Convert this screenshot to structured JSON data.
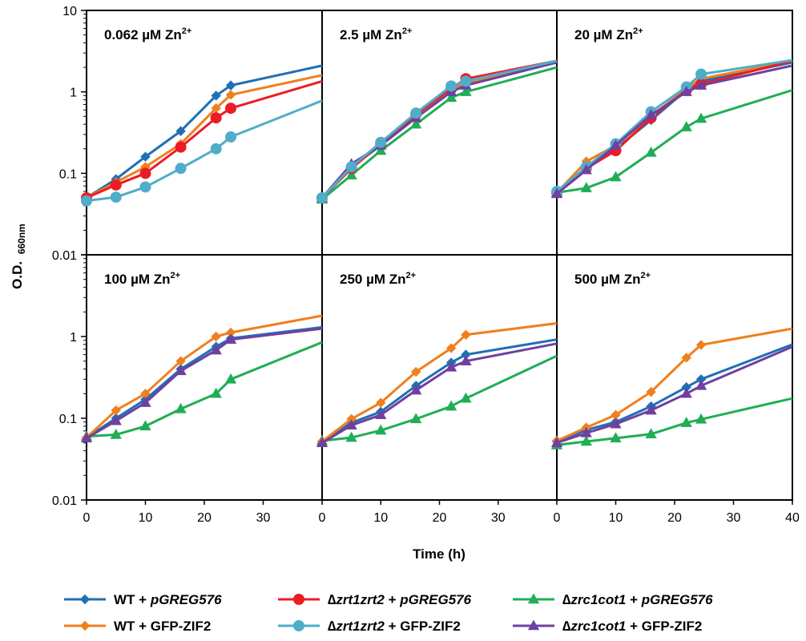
{
  "figure": {
    "ylabel_main": "O.D.",
    "ylabel_sub": "660nm",
    "xlabel": "Time (h)",
    "y_ticks": [
      "10",
      "1",
      "0.1",
      "0.01"
    ],
    "y_ticks_bottom": [
      "1",
      "0.1",
      "0.01"
    ],
    "x_ticks_first": [
      "0",
      "10",
      "20",
      "30"
    ],
    "x_ticks_last": [
      "0",
      "10",
      "20",
      "30",
      "40"
    ]
  },
  "legend": {
    "placement": "bottom",
    "items": [
      {
        "series": "wt_pgreg",
        "parts": [
          {
            "t": "WT + ",
            "i": false
          },
          {
            "t": "pGREG576",
            "i": true
          }
        ]
      },
      {
        "series": "zrt_pgreg",
        "parts": [
          {
            "t": "∆",
            "i": false
          },
          {
            "t": "zrt1zrt2",
            "i": true
          },
          {
            "t": " + ",
            "i": false
          },
          {
            "t": "pGREG576",
            "i": true
          }
        ]
      },
      {
        "series": "zrc_pgreg",
        "parts": [
          {
            "t": "∆",
            "i": false
          },
          {
            "t": "zrc1cot1",
            "i": true
          },
          {
            "t": " + ",
            "i": false
          },
          {
            "t": "pGREG576",
            "i": true
          }
        ]
      },
      {
        "series": "wt_gfp",
        "parts": [
          {
            "t": "WT + GFP-ZIF2",
            "i": false
          }
        ]
      },
      {
        "series": "zrt_gfp",
        "parts": [
          {
            "t": "∆",
            "i": false
          },
          {
            "t": "zrt1zrt2",
            "i": true
          },
          {
            "t": " + GFP-ZIF2",
            "i": false
          }
        ]
      },
      {
        "series": "zrc_gfp",
        "parts": [
          {
            "t": "∆",
            "i": false
          },
          {
            "t": "zrc1cot1",
            "i": true
          },
          {
            "t": " + GFP-ZIF2",
            "i": false
          }
        ]
      }
    ]
  },
  "series_styles": {
    "wt_pgreg": {
      "color": "#1f6fb5",
      "marker": "diamond"
    },
    "wt_gfp": {
      "color": "#f07f1e",
      "marker": "diamond"
    },
    "zrt_pgreg": {
      "color": "#ec1c24",
      "marker": "circle"
    },
    "zrt_gfp": {
      "color": "#4fadc9",
      "marker": "circle"
    },
    "zrc_pgreg": {
      "color": "#1fae55",
      "marker": "triangle"
    },
    "zrc_gfp": {
      "color": "#7040a0",
      "marker": "triangle"
    }
  },
  "chart_data": [
    {
      "type": "line",
      "title": "0.062 µM Zn2+",
      "y_scale": "log",
      "ylim": [
        0.01,
        10
      ],
      "xlim": [
        0,
        40
      ],
      "series": [
        {
          "id": "wt_pgreg",
          "x": [
            0,
            5,
            10,
            16,
            22,
            24.5,
            40
          ],
          "y": [
            0.05,
            0.085,
            0.16,
            0.33,
            0.9,
            1.2,
            2.1
          ],
          "markers": 6
        },
        {
          "id": "wt_gfp",
          "x": [
            0,
            5,
            10,
            16,
            22,
            24.5,
            40
          ],
          "y": [
            0.05,
            0.078,
            0.12,
            0.23,
            0.63,
            0.92,
            1.6
          ],
          "markers": 6
        },
        {
          "id": "zrt_pgreg",
          "x": [
            0,
            5,
            10,
            16,
            22,
            24.5,
            40
          ],
          "y": [
            0.05,
            0.072,
            0.1,
            0.21,
            0.48,
            0.63,
            1.35
          ],
          "markers": 6
        },
        {
          "id": "zrt_gfp",
          "x": [
            0,
            5,
            10,
            16,
            22,
            24.5,
            40
          ],
          "y": [
            0.046,
            0.051,
            0.068,
            0.115,
            0.2,
            0.28,
            0.78
          ],
          "markers": 6
        }
      ]
    },
    {
      "type": "line",
      "title": "2.5 µM Zn2+",
      "y_scale": "log",
      "ylim": [
        0.01,
        10
      ],
      "xlim": [
        0,
        40
      ],
      "series": [
        {
          "id": "zrc_pgreg",
          "x": [
            0,
            5,
            10,
            16,
            22,
            24.5,
            40
          ],
          "y": [
            0.048,
            0.095,
            0.19,
            0.4,
            0.85,
            1.0,
            2.0
          ],
          "markers": 6
        },
        {
          "id": "wt_pgreg",
          "x": [
            0,
            5,
            10,
            16,
            22,
            24.5,
            40
          ],
          "y": [
            0.05,
            0.12,
            0.22,
            0.5,
            1.0,
            1.25,
            2.3
          ],
          "markers": 6
        },
        {
          "id": "wt_gfp",
          "x": [
            0,
            5,
            10,
            16,
            22,
            24.5,
            40
          ],
          "y": [
            0.05,
            0.115,
            0.23,
            0.52,
            1.05,
            1.3,
            2.35
          ],
          "markers": 6
        },
        {
          "id": "zrt_pgreg",
          "x": [
            0,
            5,
            10,
            16,
            22,
            24.5,
            40
          ],
          "y": [
            0.05,
            0.115,
            0.23,
            0.53,
            1.1,
            1.45,
            2.4
          ],
          "markers": 6
        },
        {
          "id": "zrc_gfp",
          "x": [
            0,
            5,
            10,
            16,
            22,
            24.5,
            40
          ],
          "y": [
            0.05,
            0.13,
            0.22,
            0.48,
            1.0,
            1.2,
            2.3
          ],
          "markers": 6
        },
        {
          "id": "zrt_gfp",
          "x": [
            0,
            5,
            10,
            16,
            22,
            24.5,
            40
          ],
          "y": [
            0.05,
            0.12,
            0.24,
            0.55,
            1.18,
            1.35,
            2.4
          ],
          "markers": 6
        }
      ]
    },
    {
      "type": "line",
      "title": "20 µM Zn2+",
      "y_scale": "log",
      "ylim": [
        0.01,
        10
      ],
      "xlim": [
        0,
        40
      ],
      "series": [
        {
          "id": "zrc_pgreg",
          "x": [
            0,
            5,
            10,
            16,
            22,
            24.5,
            40
          ],
          "y": [
            0.058,
            0.066,
            0.09,
            0.18,
            0.37,
            0.47,
            1.05
          ],
          "markers": 6
        },
        {
          "id": "wt_pgreg",
          "x": [
            0,
            5,
            10,
            16,
            22,
            24.5,
            40
          ],
          "y": [
            0.058,
            0.12,
            0.2,
            0.45,
            1.05,
            1.35,
            2.3
          ],
          "markers": 6
        },
        {
          "id": "wt_gfp",
          "x": [
            0,
            5,
            10,
            16,
            22,
            24.5,
            40
          ],
          "y": [
            0.058,
            0.14,
            0.22,
            0.5,
            1.1,
            1.45,
            2.4
          ],
          "markers": 6
        },
        {
          "id": "zrt_pgreg",
          "x": [
            0,
            5,
            10,
            16,
            22,
            24.5,
            40
          ],
          "y": [
            0.058,
            0.115,
            0.19,
            0.48,
            1.05,
            1.25,
            2.4
          ],
          "markers": 6
        },
        {
          "id": "zrt_gfp",
          "x": [
            0,
            5,
            10,
            16,
            22,
            24.5,
            40
          ],
          "y": [
            0.06,
            0.12,
            0.23,
            0.57,
            1.15,
            1.65,
            2.45
          ],
          "markers": 6
        },
        {
          "id": "zrc_gfp",
          "x": [
            0,
            5,
            10,
            16,
            22,
            24.5,
            40
          ],
          "y": [
            0.056,
            0.11,
            0.22,
            0.52,
            1.0,
            1.2,
            2.1
          ],
          "markers": 6
        }
      ]
    },
    {
      "type": "line",
      "title": "100 µM Zn2+",
      "y_scale": "log",
      "ylim": [
        0.01,
        10
      ],
      "xlim": [
        0,
        40
      ],
      "series": [
        {
          "id": "zrc_pgreg",
          "x": [
            0,
            5,
            10,
            16,
            22,
            24.5,
            40
          ],
          "y": [
            0.06,
            0.063,
            0.08,
            0.13,
            0.2,
            0.3,
            0.85
          ],
          "markers": 6
        },
        {
          "id": "wt_pgreg",
          "x": [
            0,
            5,
            10,
            16,
            22,
            24.5,
            40
          ],
          "y": [
            0.058,
            0.1,
            0.17,
            0.4,
            0.75,
            0.95,
            1.3
          ],
          "markers": 6
        },
        {
          "id": "wt_gfp",
          "x": [
            0,
            5,
            10,
            16,
            22,
            24.5,
            40
          ],
          "y": [
            0.058,
            0.125,
            0.2,
            0.5,
            1.0,
            1.12,
            1.8
          ],
          "markers": 6
        },
        {
          "id": "zrc_gfp",
          "x": [
            0,
            5,
            10,
            16,
            22,
            24.5,
            40
          ],
          "y": [
            0.057,
            0.093,
            0.155,
            0.38,
            0.68,
            0.92,
            1.25
          ],
          "markers": 6
        }
      ]
    },
    {
      "type": "line",
      "title": "250 µM Zn2+",
      "y_scale": "log",
      "ylim": [
        0.01,
        10
      ],
      "xlim": [
        0,
        40
      ],
      "series": [
        {
          "id": "zrc_pgreg",
          "x": [
            0,
            5,
            10,
            16,
            22,
            24.5,
            40
          ],
          "y": [
            0.053,
            0.058,
            0.071,
            0.098,
            0.14,
            0.175,
            0.58
          ],
          "markers": 6
        },
        {
          "id": "wt_pgreg",
          "x": [
            0,
            5,
            10,
            16,
            22,
            24.5,
            40
          ],
          "y": [
            0.052,
            0.088,
            0.12,
            0.25,
            0.48,
            0.6,
            0.92
          ],
          "markers": 6
        },
        {
          "id": "wt_gfp",
          "x": [
            0,
            5,
            10,
            16,
            22,
            24.5,
            40
          ],
          "y": [
            0.052,
            0.098,
            0.155,
            0.37,
            0.72,
            1.05,
            1.45
          ],
          "markers": 6
        },
        {
          "id": "zrc_gfp",
          "x": [
            0,
            5,
            10,
            16,
            22,
            24.5,
            40
          ],
          "y": [
            0.05,
            0.082,
            0.11,
            0.22,
            0.42,
            0.5,
            0.82
          ],
          "markers": 6
        }
      ]
    },
    {
      "type": "line",
      "title": "500 µM Zn2+",
      "y_scale": "log",
      "ylim": [
        0.01,
        10
      ],
      "xlim": [
        0,
        40
      ],
      "series": [
        {
          "id": "zrc_pgreg",
          "x": [
            0,
            5,
            10,
            16,
            22,
            24.5,
            40
          ],
          "y": [
            0.047,
            0.052,
            0.057,
            0.064,
            0.088,
            0.097,
            0.175
          ],
          "markers": 6
        },
        {
          "id": "wt_pgreg",
          "x": [
            0,
            5,
            10,
            16,
            22,
            24.5,
            40
          ],
          "y": [
            0.052,
            0.072,
            0.09,
            0.14,
            0.24,
            0.3,
            0.8
          ],
          "markers": 6
        },
        {
          "id": "wt_gfp",
          "x": [
            0,
            5,
            10,
            16,
            22,
            24.5,
            40
          ],
          "y": [
            0.053,
            0.077,
            0.11,
            0.21,
            0.55,
            0.79,
            1.25
          ],
          "markers": 6
        },
        {
          "id": "zrc_gfp",
          "x": [
            0,
            5,
            10,
            16,
            22,
            24.5,
            40
          ],
          "y": [
            0.05,
            0.066,
            0.085,
            0.125,
            0.2,
            0.25,
            0.75
          ],
          "markers": 6
        }
      ]
    }
  ]
}
